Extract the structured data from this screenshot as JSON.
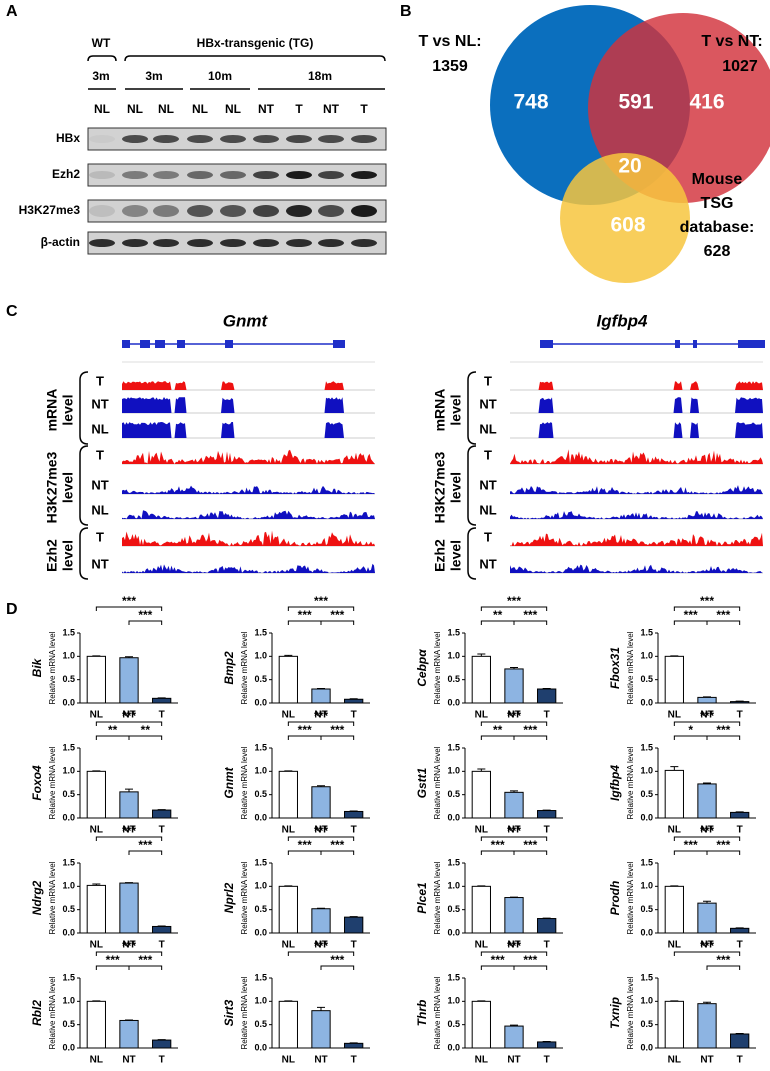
{
  "panel_a": {
    "label": "A",
    "wt": "WT",
    "tg": "HBx-transgenic (TG)",
    "ages": [
      "3m",
      "3m",
      "10m",
      "18m"
    ],
    "lanes": [
      "NL",
      "NL",
      "NL",
      "NL",
      "NL",
      "NT",
      "T",
      "NT",
      "T"
    ],
    "rows": [
      "HBx",
      "Ezh2",
      "H3K27me3",
      "β-actin"
    ]
  },
  "panel_b": {
    "label": "B",
    "set_nl": {
      "title": "T vs NL:",
      "total": 1359
    },
    "set_nt": {
      "title": "T vs NT:",
      "total": 1027
    },
    "set_tsg": {
      "title_lines": [
        "Mouse",
        "TSG",
        "database:"
      ],
      "total": 628
    },
    "regions": {
      "nl_only": 748,
      "nl_nt": 591,
      "nt_only": 416,
      "all": 20,
      "tsg_only": 608
    }
  },
  "panel_c": {
    "label": "C",
    "genes": [
      {
        "name": "Gnmt",
        "groups": [
          {
            "title_lines": [
              "mRNA",
              "level"
            ],
            "tracks": [
              "T",
              "NT",
              "NL"
            ]
          },
          {
            "title_lines": [
              "H3K27me3",
              "level"
            ],
            "tracks": [
              "T",
              "NT",
              "NL"
            ]
          },
          {
            "title_lines": [
              "Ezh2",
              "level"
            ],
            "tracks": [
              "T",
              "NT"
            ]
          }
        ]
      },
      {
        "name": "Igfbp4",
        "groups": [
          {
            "title_lines": [
              "mRNA",
              "level"
            ],
            "tracks": [
              "T",
              "NT",
              "NL"
            ]
          },
          {
            "title_lines": [
              "H3K27me3",
              "level"
            ],
            "tracks": [
              "T",
              "NT",
              "NL"
            ]
          },
          {
            "title_lines": [
              "Ezh2",
              "level"
            ],
            "tracks": [
              "T",
              "NT"
            ]
          }
        ]
      }
    ]
  },
  "panel_d": {
    "label": "D"
  },
  "chart_data": [
    {
      "type": "bar",
      "title": "Bik",
      "y_label": "Relative mRNA level",
      "categories": [
        "NL",
        "NT",
        "T"
      ],
      "values": [
        1.0,
        0.97,
        0.1
      ],
      "errors": [
        0.01,
        0.02,
        0.01
      ],
      "colors": [
        "#ffffff",
        "#8db4e2",
        "#1f3f6e"
      ],
      "ylim": [
        0,
        1.5
      ],
      "yticks": [
        {
          "value": 0,
          "label": "0.0"
        },
        0.5,
        {
          "value": 1,
          "label": "1.0"
        },
        1.5
      ],
      "significance": [
        {
          "groups": [
            "NL",
            "T"
          ],
          "label": "***"
        },
        {
          "groups": [
            "NT",
            "T"
          ],
          "label": "***"
        }
      ]
    },
    {
      "type": "bar",
      "title": "Bmp2",
      "y_label": "Relative mRNA level",
      "categories": [
        "NL",
        "NT",
        "T"
      ],
      "values": [
        1.0,
        0.3,
        0.08
      ],
      "errors": [
        0.02,
        0.01,
        0.01
      ],
      "colors": [
        "#ffffff",
        "#8db4e2",
        "#1f3f6e"
      ],
      "ylim": [
        0,
        1.5
      ],
      "yticks": [
        {
          "value": 0,
          "label": "0.0"
        },
        0.5,
        {
          "value": 1,
          "label": "1.0"
        },
        1.5
      ],
      "significance": [
        {
          "groups": [
            "NL",
            "T"
          ],
          "label": "***"
        },
        {
          "groups": [
            "NL",
            "NT"
          ],
          "label": "***"
        },
        {
          "groups": [
            "NT",
            "T"
          ],
          "label": "***"
        }
      ]
    },
    {
      "type": "bar",
      "title": "Cebpα",
      "y_label": "Relative mRNA level",
      "categories": [
        "NL",
        "NT",
        "T"
      ],
      "values": [
        1.0,
        0.73,
        0.3
      ],
      "errors": [
        0.05,
        0.03,
        0.01
      ],
      "colors": [
        "#ffffff",
        "#8db4e2",
        "#1f3f6e"
      ],
      "ylim": [
        0,
        1.5
      ],
      "yticks": [
        {
          "value": 0,
          "label": "0.0"
        },
        0.5,
        {
          "value": 1,
          "label": "1.0"
        },
        1.5
      ],
      "significance": [
        {
          "groups": [
            "NL",
            "T"
          ],
          "label": "***"
        },
        {
          "groups": [
            "NL",
            "NT"
          ],
          "label": "**"
        },
        {
          "groups": [
            "NT",
            "T"
          ],
          "label": "***"
        }
      ]
    },
    {
      "type": "bar",
      "title": "Fbox31",
      "y_label": "Relative mRNA level",
      "categories": [
        "NL",
        "NT",
        "T"
      ],
      "values": [
        1.0,
        0.12,
        0.03
      ],
      "errors": [
        0.01,
        0.01,
        0.01
      ],
      "colors": [
        "#ffffff",
        "#8db4e2",
        "#1f3f6e"
      ],
      "ylim": [
        0,
        1.5
      ],
      "yticks": [
        {
          "value": 0,
          "label": "0.0"
        },
        0.5,
        {
          "value": 1,
          "label": "1.0"
        },
        1.5
      ],
      "significance": [
        {
          "groups": [
            "NL",
            "T"
          ],
          "label": "***"
        },
        {
          "groups": [
            "NL",
            "NT"
          ],
          "label": "***"
        },
        {
          "groups": [
            "NT",
            "T"
          ],
          "label": "***"
        }
      ]
    },
    {
      "type": "bar",
      "title": "Foxo4",
      "y_label": "Relative mRNA level",
      "categories": [
        "NL",
        "NT",
        "T"
      ],
      "values": [
        1.0,
        0.56,
        0.17
      ],
      "errors": [
        0.01,
        0.06,
        0.01
      ],
      "colors": [
        "#ffffff",
        "#8db4e2",
        "#1f3f6e"
      ],
      "ylim": [
        0,
        1.5
      ],
      "yticks": [
        {
          "value": 0,
          "label": "0.0"
        },
        0.5,
        {
          "value": 1,
          "label": "1.0"
        },
        1.5
      ],
      "significance": [
        {
          "groups": [
            "NL",
            "T"
          ],
          "label": "***"
        },
        {
          "groups": [
            "NL",
            "NT"
          ],
          "label": "**"
        },
        {
          "groups": [
            "NT",
            "T"
          ],
          "label": "**"
        }
      ]
    },
    {
      "type": "bar",
      "title": "Gnmt",
      "y_label": "Relative mRNA level",
      "categories": [
        "NL",
        "NT",
        "T"
      ],
      "values": [
        1.0,
        0.67,
        0.14
      ],
      "errors": [
        0.01,
        0.02,
        0.01
      ],
      "colors": [
        "#ffffff",
        "#8db4e2",
        "#1f3f6e"
      ],
      "ylim": [
        0,
        1.5
      ],
      "yticks": [
        {
          "value": 0,
          "label": "0.0"
        },
        0.5,
        {
          "value": 1,
          "label": "1.0"
        },
        1.5
      ],
      "significance": [
        {
          "groups": [
            "NL",
            "T"
          ],
          "label": "***"
        },
        {
          "groups": [
            "NL",
            "NT"
          ],
          "label": "***"
        },
        {
          "groups": [
            "NT",
            "T"
          ],
          "label": "***"
        }
      ]
    },
    {
      "type": "bar",
      "title": "Gstt1",
      "y_label": "Relative mRNA level",
      "categories": [
        "NL",
        "NT",
        "T"
      ],
      "values": [
        1.0,
        0.55,
        0.16
      ],
      "errors": [
        0.05,
        0.03,
        0.01
      ],
      "colors": [
        "#ffffff",
        "#8db4e2",
        "#1f3f6e"
      ],
      "ylim": [
        0,
        1.5
      ],
      "yticks": [
        {
          "value": 0,
          "label": "0.0"
        },
        0.5,
        {
          "value": 1,
          "label": "1.0"
        },
        1.5
      ],
      "significance": [
        {
          "groups": [
            "NL",
            "T"
          ],
          "label": "***"
        },
        {
          "groups": [
            "NL",
            "NT"
          ],
          "label": "**"
        },
        {
          "groups": [
            "NT",
            "T"
          ],
          "label": "***"
        }
      ]
    },
    {
      "type": "bar",
      "title": "Igfbp4",
      "y_label": "Relative mRNA level",
      "categories": [
        "NL",
        "NT",
        "T"
      ],
      "values": [
        1.02,
        0.73,
        0.12
      ],
      "errors": [
        0.08,
        0.02,
        0.01
      ],
      "colors": [
        "#ffffff",
        "#8db4e2",
        "#1f3f6e"
      ],
      "ylim": [
        0,
        1.5
      ],
      "yticks": [
        {
          "value": 0,
          "label": "0.0"
        },
        0.5,
        {
          "value": 1,
          "label": "1.0"
        },
        1.5
      ],
      "significance": [
        {
          "groups": [
            "NL",
            "T"
          ],
          "label": "***"
        },
        {
          "groups": [
            "NL",
            "NT"
          ],
          "label": "*"
        },
        {
          "groups": [
            "NT",
            "T"
          ],
          "label": "***"
        }
      ]
    },
    {
      "type": "bar",
      "title": "Ndrg2",
      "y_label": "Relative mRNA level",
      "categories": [
        "NL",
        "NT",
        "T"
      ],
      "values": [
        1.02,
        1.07,
        0.14
      ],
      "errors": [
        0.03,
        0.01,
        0.01
      ],
      "colors": [
        "#ffffff",
        "#8db4e2",
        "#1f3f6e"
      ],
      "ylim": [
        0,
        1.5
      ],
      "yticks": [
        {
          "value": 0,
          "label": "0.0"
        },
        0.5,
        {
          "value": 1,
          "label": "1.0"
        },
        1.5
      ],
      "significance": [
        {
          "groups": [
            "NL",
            "T"
          ],
          "label": "***"
        },
        {
          "groups": [
            "NT",
            "T"
          ],
          "label": "***"
        }
      ]
    },
    {
      "type": "bar",
      "title": "Nprl2",
      "y_label": "Relative mRNA level",
      "categories": [
        "NL",
        "NT",
        "T"
      ],
      "values": [
        1.0,
        0.52,
        0.34
      ],
      "errors": [
        0.01,
        0.01,
        0.01
      ],
      "colors": [
        "#ffffff",
        "#8db4e2",
        "#1f3f6e"
      ],
      "ylim": [
        0,
        1.5
      ],
      "yticks": [
        {
          "value": 0,
          "label": "0.0"
        },
        0.5,
        {
          "value": 1,
          "label": "1.0"
        },
        1.5
      ],
      "significance": [
        {
          "groups": [
            "NL",
            "T"
          ],
          "label": "***"
        },
        {
          "groups": [
            "NL",
            "NT"
          ],
          "label": "***"
        },
        {
          "groups": [
            "NT",
            "T"
          ],
          "label": "***"
        }
      ]
    },
    {
      "type": "bar",
      "title": "Plce1",
      "y_label": "Relative mRNA level",
      "categories": [
        "NL",
        "NT",
        "T"
      ],
      "values": [
        1.0,
        0.76,
        0.31
      ],
      "errors": [
        0.01,
        0.01,
        0.01
      ],
      "colors": [
        "#ffffff",
        "#8db4e2",
        "#1f3f6e"
      ],
      "ylim": [
        0,
        1.5
      ],
      "yticks": [
        {
          "value": 0,
          "label": "0.0"
        },
        0.5,
        {
          "value": 1,
          "label": "1.0"
        },
        1.5
      ],
      "significance": [
        {
          "groups": [
            "NL",
            "T"
          ],
          "label": "***"
        },
        {
          "groups": [
            "NL",
            "NT"
          ],
          "label": "***"
        },
        {
          "groups": [
            "NT",
            "T"
          ],
          "label": "***"
        }
      ]
    },
    {
      "type": "bar",
      "title": "Prodh",
      "y_label": "Relative mRNA level",
      "categories": [
        "NL",
        "NT",
        "T"
      ],
      "values": [
        1.0,
        0.64,
        0.1
      ],
      "errors": [
        0.01,
        0.04,
        0.01
      ],
      "colors": [
        "#ffffff",
        "#8db4e2",
        "#1f3f6e"
      ],
      "ylim": [
        0,
        1.5
      ],
      "yticks": [
        {
          "value": 0,
          "label": "0.0"
        },
        0.5,
        {
          "value": 1,
          "label": "1.0"
        },
        1.5
      ],
      "significance": [
        {
          "groups": [
            "NL",
            "T"
          ],
          "label": "***"
        },
        {
          "groups": [
            "NL",
            "NT"
          ],
          "label": "***"
        },
        {
          "groups": [
            "NT",
            "T"
          ],
          "label": "***"
        }
      ]
    },
    {
      "type": "bar",
      "title": "Rbl2",
      "y_label": "Relative mRNA level",
      "categories": [
        "NL",
        "NT",
        "T"
      ],
      "values": [
        1.0,
        0.59,
        0.17
      ],
      "errors": [
        0.01,
        0.01,
        0.01
      ],
      "colors": [
        "#ffffff",
        "#8db4e2",
        "#1f3f6e"
      ],
      "ylim": [
        0,
        1.5
      ],
      "yticks": [
        {
          "value": 0,
          "label": "0.0"
        },
        0.5,
        {
          "value": 1,
          "label": "1.0"
        },
        1.5
      ],
      "significance": [
        {
          "groups": [
            "NL",
            "T"
          ],
          "label": "***"
        },
        {
          "groups": [
            "NL",
            "NT"
          ],
          "label": "***"
        },
        {
          "groups": [
            "NT",
            "T"
          ],
          "label": "***"
        }
      ]
    },
    {
      "type": "bar",
      "title": "Sirt3",
      "y_label": "Relative mRNA level",
      "categories": [
        "NL",
        "NT",
        "T"
      ],
      "values": [
        1.0,
        0.8,
        0.1
      ],
      "errors": [
        0.01,
        0.07,
        0.01
      ],
      "colors": [
        "#ffffff",
        "#8db4e2",
        "#1f3f6e"
      ],
      "ylim": [
        0,
        1.5
      ],
      "yticks": [
        {
          "value": 0,
          "label": "0.0"
        },
        0.5,
        {
          "value": 1,
          "label": "1.0"
        },
        1.5
      ],
      "significance": [
        {
          "groups": [
            "NL",
            "T"
          ],
          "label": "***"
        },
        {
          "groups": [
            "NT",
            "T"
          ],
          "label": "***"
        }
      ]
    },
    {
      "type": "bar",
      "title": "Thrb",
      "y_label": "Relative mRNA level",
      "categories": [
        "NL",
        "NT",
        "T"
      ],
      "values": [
        1.0,
        0.47,
        0.13
      ],
      "errors": [
        0.01,
        0.02,
        0.01
      ],
      "colors": [
        "#ffffff",
        "#8db4e2",
        "#1f3f6e"
      ],
      "ylim": [
        0,
        1.5
      ],
      "yticks": [
        {
          "value": 0,
          "label": "0.0"
        },
        0.5,
        {
          "value": 1,
          "label": "1.0"
        },
        1.5
      ],
      "significance": [
        {
          "groups": [
            "NL",
            "T"
          ],
          "label": "***"
        },
        {
          "groups": [
            "NL",
            "NT"
          ],
          "label": "***"
        },
        {
          "groups": [
            "NT",
            "T"
          ],
          "label": "***"
        }
      ]
    },
    {
      "type": "bar",
      "title": "Txnip",
      "y_label": "Relative mRNA level",
      "categories": [
        "NL",
        "NT",
        "T"
      ],
      "values": [
        1.0,
        0.95,
        0.3
      ],
      "errors": [
        0.01,
        0.03,
        0.01
      ],
      "colors": [
        "#ffffff",
        "#8db4e2",
        "#1f3f6e"
      ],
      "ylim": [
        0,
        1.5
      ],
      "yticks": [
        {
          "value": 0,
          "label": "0.0"
        },
        0.5,
        {
          "value": 1,
          "label": "1.0"
        },
        1.5
      ],
      "significance": [
        {
          "groups": [
            "NL",
            "T"
          ],
          "label": "***"
        },
        {
          "groups": [
            "NT",
            "T"
          ],
          "label": "***"
        }
      ]
    }
  ]
}
